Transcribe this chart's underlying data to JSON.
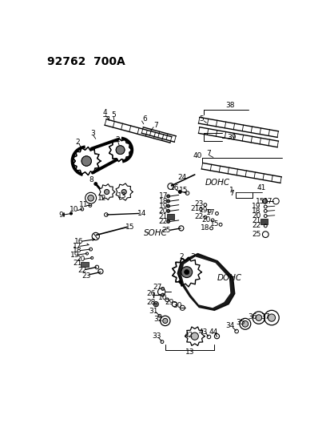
{
  "title": "92762  700A",
  "bg_color": "#ffffff",
  "text_color": "#000000",
  "title_fontsize": 10,
  "label_fontsize": 6.5,
  "sohc_label": "SOHC",
  "dohc_label1": "DOHC",
  "dohc_label2": "DOHC",
  "figsize": [
    4.14,
    5.33
  ],
  "dpi": 100,
  "xlim": [
    0,
    414
  ],
  "ylim": [
    0,
    533
  ]
}
